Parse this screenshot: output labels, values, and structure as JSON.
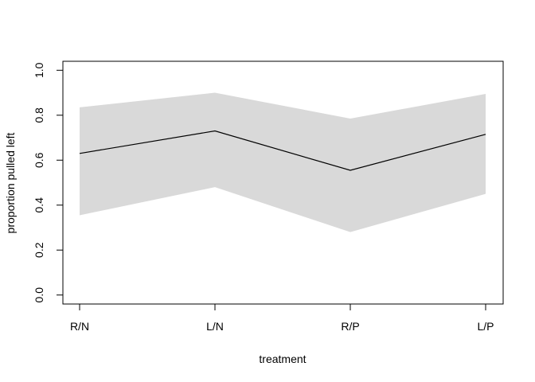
{
  "chart_data": {
    "type": "line",
    "title": "",
    "xlabel": "treatment",
    "ylabel": "proportion pulled left",
    "categories": [
      "R/N",
      "L/N",
      "R/P",
      "L/P"
    ],
    "series": [
      {
        "values": [
          0.63,
          0.73,
          0.555,
          0.715
        ],
        "lower": [
          0.355,
          0.48,
          0.28,
          0.45
        ],
        "upper": [
          0.835,
          0.9,
          0.785,
          0.895
        ],
        "line_color": "#000000",
        "band_color": "#d9d9d9"
      }
    ],
    "yticks": [
      "0.0",
      "0.2",
      "0.4",
      "0.6",
      "0.8",
      "1.0"
    ],
    "ytick_values": [
      0,
      0.2,
      0.4,
      0.6,
      0.8,
      1.0
    ],
    "ylim": [
      -0.04,
      1.04
    ],
    "grid": false,
    "legend": "none"
  }
}
